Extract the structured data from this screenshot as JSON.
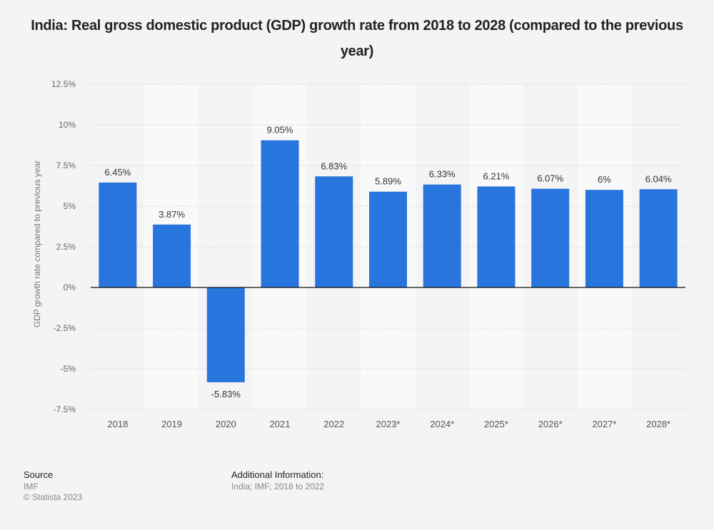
{
  "title": "India: Real gross domestic product (GDP) growth rate from 2018 to 2028 (compared to the previous year)",
  "footer": {
    "source_label": "Source",
    "source_value": "IMF",
    "copyright": "© Statista 2023",
    "additional_label": "Additional Information:",
    "additional_value": "India; IMF; 2018 to 2022"
  },
  "colors": {
    "bar": "#2876dd",
    "background": "#f4f4f4",
    "band": "#f9f9f9"
  },
  "chart_data": {
    "type": "bar",
    "title": "India: Real gross domestic product (GDP) growth rate from 2018 to 2028 (compared to the previous year)",
    "xlabel": "",
    "ylabel": "GDP growth rate compared to previous year",
    "categories": [
      "2018",
      "2019",
      "2020",
      "2021",
      "2022",
      "2023*",
      "2024*",
      "2025*",
      "2026*",
      "2027*",
      "2028*"
    ],
    "values": [
      6.45,
      3.87,
      -5.83,
      9.05,
      6.83,
      5.89,
      6.33,
      6.21,
      6.07,
      6.0,
      6.04
    ],
    "data_labels": [
      "6.45%",
      "3.87%",
      "-5.83%",
      "9.05%",
      "6.83%",
      "5.89%",
      "6.33%",
      "6.21%",
      "6.07%",
      "6%",
      "6.04%"
    ],
    "ylim": [
      -7.5,
      12.5
    ],
    "yticks": [
      12.5,
      10,
      7.5,
      5,
      2.5,
      0,
      -2.5,
      -5,
      -7.5
    ],
    "ytick_labels": [
      "12.5%",
      "10%",
      "7.5%",
      "5%",
      "2.5%",
      "0%",
      "-2.5%",
      "-5%",
      "-7.5%"
    ],
    "grid": true,
    "legend": "none"
  }
}
